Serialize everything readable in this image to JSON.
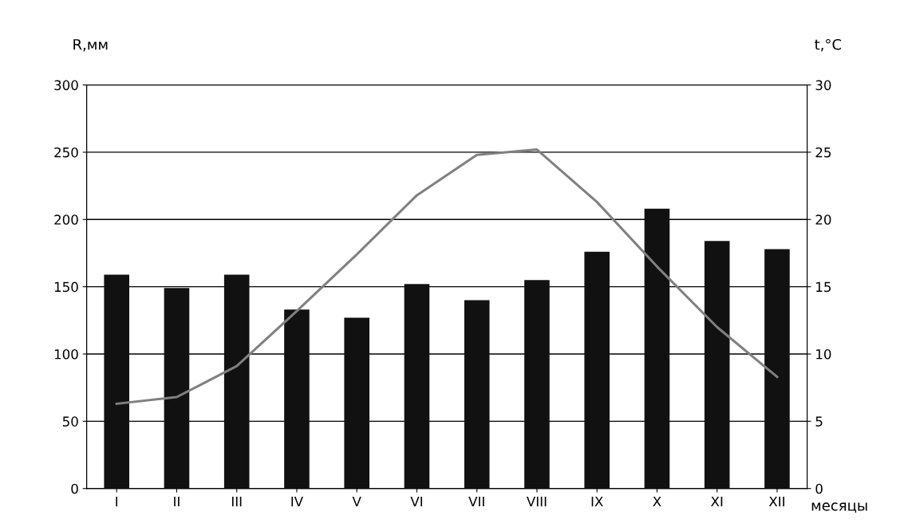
{
  "chart_data": {
    "type": "bar",
    "categories": [
      "I",
      "II",
      "III",
      "IV",
      "V",
      "VI",
      "VII",
      "VIII",
      "IX",
      "X",
      "XI",
      "XII"
    ],
    "series": [
      {
        "color": "#111111",
        "values": [
          159,
          149,
          159,
          133,
          127,
          152,
          140,
          155,
          176,
          208,
          184,
          178
        ]
      },
      {
        "type": "line",
        "axis": "y2",
        "color": "#808080",
        "values": [
          6.3,
          6.8,
          9.1,
          13.2,
          17.4,
          21.8,
          24.8,
          25.2,
          21.3,
          16.5,
          12.0,
          8.3
        ]
      }
    ],
    "xlabel": "месяцы",
    "ylabel": "R,мм",
    "y2label": "t,°C",
    "ylim": [
      0,
      300
    ],
    "yticks": [
      0,
      50,
      100,
      150,
      200,
      250,
      300
    ],
    "y2lim": [
      0,
      30
    ],
    "y2ticks": [
      0,
      5,
      10,
      15,
      20,
      25,
      30
    ],
    "grid": "y",
    "marker": "none",
    "line_style": "solid"
  }
}
